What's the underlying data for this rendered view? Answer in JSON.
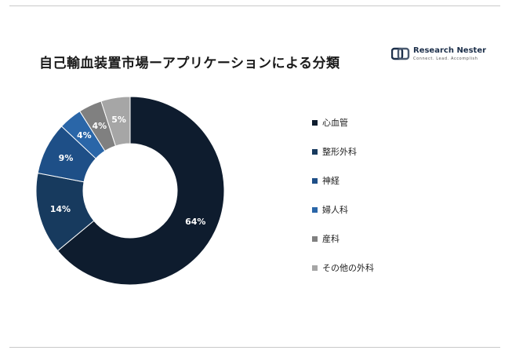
{
  "header": {
    "title": "自己輸血装置市場ーアプリケーションによる分類"
  },
  "logo": {
    "brand_a": "Research",
    "brand_b": "Nester",
    "tagline": "Connect. Lead. Accomplish"
  },
  "chart_data": {
    "type": "pie",
    "variant": "donut",
    "title": "自己輸血装置市場ーアプリケーションによる分類",
    "categories": [
      "心血管",
      "整形外科",
      "神経",
      "婦人科",
      "産科",
      "その他の外科"
    ],
    "values": [
      64,
      14,
      9,
      4,
      4,
      5
    ],
    "labels": [
      "64%",
      "14%",
      "9%",
      "4%",
      "4%",
      "5%"
    ],
    "colors": [
      "#0e1c2e",
      "#173a5e",
      "#1e4f87",
      "#2a66a8",
      "#808080",
      "#a6a6a6"
    ],
    "legend_position": "right"
  }
}
